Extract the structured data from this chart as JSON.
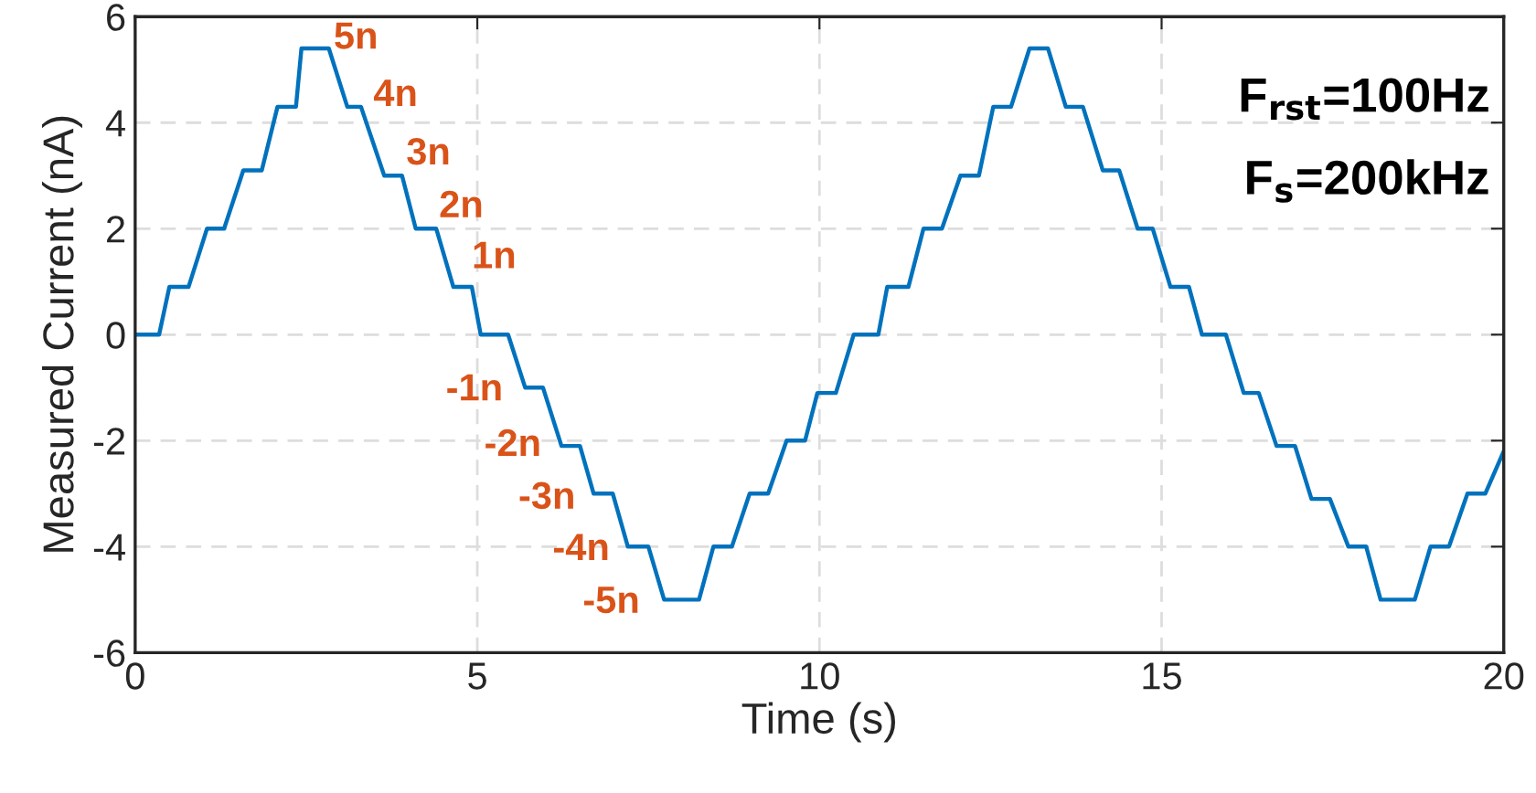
{
  "chart_data": {
    "type": "line",
    "xlabel": "Time (s)",
    "ylabel": "Measured Current (nA)",
    "xlim": [
      0,
      20
    ],
    "ylim": [
      -6,
      6
    ],
    "xticks": [
      0,
      5,
      10,
      15,
      20
    ],
    "yticks": [
      -6,
      -4,
      -2,
      0,
      2,
      4,
      6
    ],
    "grid": true,
    "line_style": "solid",
    "series": [
      {
        "color": "#0072bd",
        "x": [
          0,
          0.35,
          0.5,
          0.78,
          1.05,
          1.3,
          1.58,
          1.85,
          2.08,
          2.35,
          2.43,
          2.83,
          3.1,
          3.3,
          3.64,
          3.9,
          4.1,
          4.4,
          4.65,
          4.92,
          5.05,
          5.45,
          5.7,
          5.96,
          6.23,
          6.5,
          6.7,
          6.98,
          7.2,
          7.5,
          7.73,
          8.24,
          8.45,
          8.72,
          8.98,
          9.25,
          9.52,
          9.79,
          9.97,
          10.24,
          10.5,
          10.86,
          10.99,
          11.3,
          11.52,
          11.79,
          12.06,
          12.33,
          12.54,
          12.8,
          13.07,
          13.34,
          13.6,
          13.85,
          14.14,
          14.38,
          14.65,
          14.87,
          15.13,
          15.4,
          15.59,
          15.94,
          16.2,
          16.42,
          16.68,
          16.95,
          17.19,
          17.46,
          17.73,
          17.99,
          18.2,
          18.7,
          18.93,
          19.2,
          19.47,
          19.73,
          20
        ],
        "values": [
          0,
          0,
          0.9,
          0.9,
          2.0,
          2.0,
          3.1,
          3.1,
          4.3,
          4.3,
          5.4,
          5.4,
          4.3,
          4.3,
          3.0,
          3.0,
          2.0,
          2.0,
          0.9,
          0.9,
          0,
          0,
          -1.0,
          -1.0,
          -2.1,
          -2.1,
          -3.0,
          -3.0,
          -4.0,
          -4.0,
          -5.0,
          -5.0,
          -4.0,
          -4.0,
          -3.0,
          -3.0,
          -2.0,
          -2.0,
          -1.1,
          -1.1,
          0,
          0,
          0.9,
          0.9,
          2.0,
          2.0,
          3.0,
          3.0,
          4.3,
          4.3,
          5.4,
          5.4,
          4.3,
          4.3,
          3.1,
          3.1,
          2.0,
          2.0,
          0.9,
          0.9,
          0,
          0,
          -1.1,
          -1.1,
          -2.1,
          -2.1,
          -3.1,
          -3.1,
          -4.0,
          -4.0,
          -5.0,
          -5.0,
          -4.0,
          -4.0,
          -3.0,
          -3.0,
          -2.2
        ]
      }
    ],
    "annotations": [
      "5n",
      "4n",
      "3n",
      "2n",
      "1n",
      "-1n",
      "-2n",
      "-3n",
      "-4n",
      "-5n",
      "F$_{rst}$=100Hz",
      "F$_{s}$=200kHz"
    ]
  }
}
